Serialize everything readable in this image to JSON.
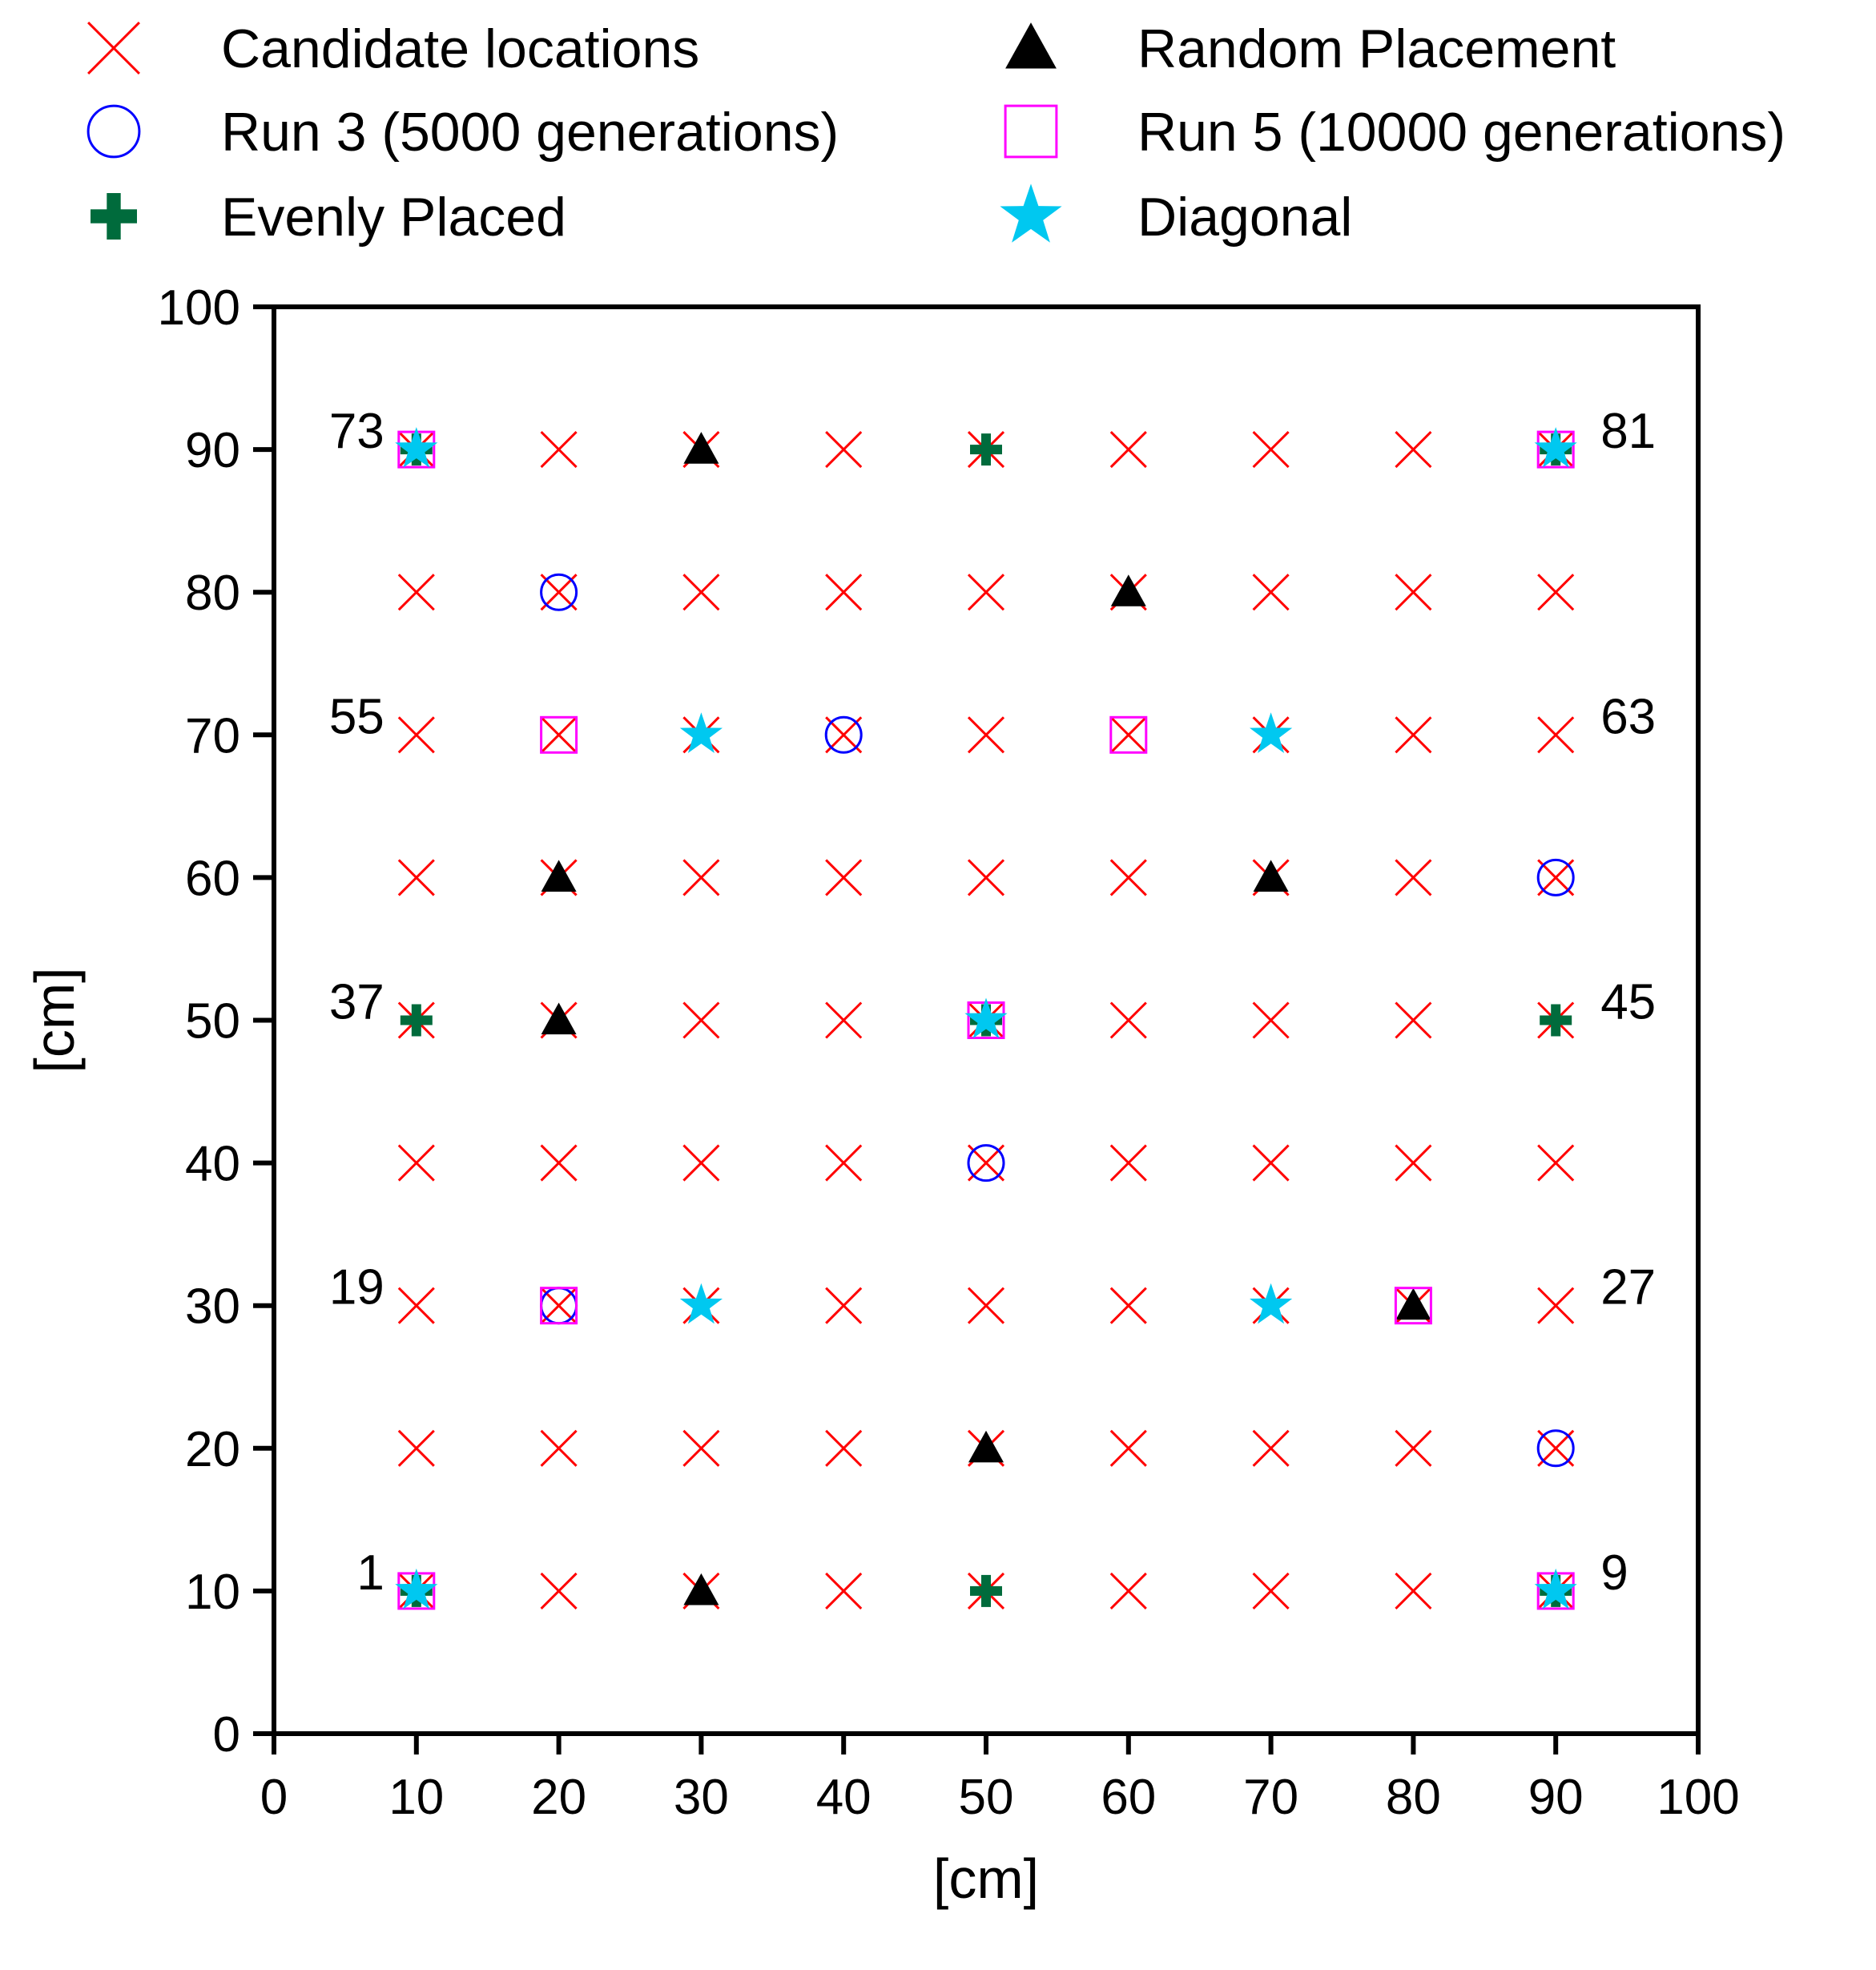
{
  "chart_data": {
    "type": "scatter",
    "title": "",
    "xlabel": "[cm]",
    "ylabel": "[cm]",
    "xlim": [
      0,
      100
    ],
    "ylim": [
      0,
      100
    ],
    "xticks": [
      0,
      10,
      20,
      30,
      40,
      50,
      60,
      70,
      80,
      90,
      100
    ],
    "yticks": [
      0,
      10,
      20,
      30,
      40,
      50,
      60,
      70,
      80,
      90,
      100
    ],
    "grid": false,
    "legend_position": "top",
    "colors": {
      "candidate": "#ff0000",
      "run3": "#0000ff",
      "evenly": "#006b3c",
      "random": "#000000",
      "run5": "#ff00ff",
      "diagonal": "#00c8f0"
    },
    "series": [
      {
        "key": "candidate",
        "name": "Candidate locations",
        "marker": "x",
        "points": [
          [
            10,
            10
          ],
          [
            20,
            10
          ],
          [
            30,
            10
          ],
          [
            40,
            10
          ],
          [
            50,
            10
          ],
          [
            60,
            10
          ],
          [
            70,
            10
          ],
          [
            80,
            10
          ],
          [
            90,
            10
          ],
          [
            10,
            20
          ],
          [
            20,
            20
          ],
          [
            30,
            20
          ],
          [
            40,
            20
          ],
          [
            50,
            20
          ],
          [
            60,
            20
          ],
          [
            70,
            20
          ],
          [
            80,
            20
          ],
          [
            90,
            20
          ],
          [
            10,
            30
          ],
          [
            20,
            30
          ],
          [
            30,
            30
          ],
          [
            40,
            30
          ],
          [
            50,
            30
          ],
          [
            60,
            30
          ],
          [
            70,
            30
          ],
          [
            80,
            30
          ],
          [
            90,
            30
          ],
          [
            10,
            40
          ],
          [
            20,
            40
          ],
          [
            30,
            40
          ],
          [
            40,
            40
          ],
          [
            50,
            40
          ],
          [
            60,
            40
          ],
          [
            70,
            40
          ],
          [
            80,
            40
          ],
          [
            90,
            40
          ],
          [
            10,
            50
          ],
          [
            20,
            50
          ],
          [
            30,
            50
          ],
          [
            40,
            50
          ],
          [
            50,
            50
          ],
          [
            60,
            50
          ],
          [
            70,
            50
          ],
          [
            80,
            50
          ],
          [
            90,
            50
          ],
          [
            10,
            60
          ],
          [
            20,
            60
          ],
          [
            30,
            60
          ],
          [
            40,
            60
          ],
          [
            50,
            60
          ],
          [
            60,
            60
          ],
          [
            70,
            60
          ],
          [
            80,
            60
          ],
          [
            90,
            60
          ],
          [
            10,
            70
          ],
          [
            20,
            70
          ],
          [
            30,
            70
          ],
          [
            40,
            70
          ],
          [
            50,
            70
          ],
          [
            60,
            70
          ],
          [
            70,
            70
          ],
          [
            80,
            70
          ],
          [
            90,
            70
          ],
          [
            10,
            80
          ],
          [
            20,
            80
          ],
          [
            30,
            80
          ],
          [
            40,
            80
          ],
          [
            50,
            80
          ],
          [
            60,
            80
          ],
          [
            70,
            80
          ],
          [
            80,
            80
          ],
          [
            90,
            80
          ],
          [
            10,
            90
          ],
          [
            20,
            90
          ],
          [
            30,
            90
          ],
          [
            40,
            90
          ],
          [
            50,
            90
          ],
          [
            60,
            90
          ],
          [
            70,
            90
          ],
          [
            80,
            90
          ],
          [
            90,
            90
          ]
        ]
      },
      {
        "key": "run3",
        "name": "Run 3 (5000 generations)",
        "marker": "circle",
        "points": [
          [
            20,
            80
          ],
          [
            40,
            70
          ],
          [
            90,
            60
          ],
          [
            50,
            40
          ],
          [
            20,
            30
          ],
          [
            90,
            20
          ]
        ]
      },
      {
        "key": "evenly",
        "name": "Evenly Placed",
        "marker": "plus",
        "points": [
          [
            10,
            10
          ],
          [
            50,
            10
          ],
          [
            90,
            10
          ],
          [
            10,
            50
          ],
          [
            50,
            50
          ],
          [
            90,
            50
          ],
          [
            10,
            90
          ],
          [
            50,
            90
          ],
          [
            90,
            90
          ]
        ]
      },
      {
        "key": "random",
        "name": "Random Placement",
        "marker": "triangle",
        "points": [
          [
            30,
            90
          ],
          [
            60,
            80
          ],
          [
            20,
            60
          ],
          [
            70,
            60
          ],
          [
            20,
            50
          ],
          [
            80,
            30
          ],
          [
            50,
            20
          ],
          [
            30,
            10
          ]
        ]
      },
      {
        "key": "run5",
        "name": "Run 5 (10000 generations)",
        "marker": "square",
        "points": [
          [
            10,
            90
          ],
          [
            90,
            90
          ],
          [
            20,
            70
          ],
          [
            60,
            70
          ],
          [
            50,
            50
          ],
          [
            20,
            30
          ],
          [
            80,
            30
          ],
          [
            10,
            10
          ],
          [
            90,
            10
          ]
        ]
      },
      {
        "key": "diagonal",
        "name": "Diagonal",
        "marker": "star",
        "points": [
          [
            10,
            90
          ],
          [
            90,
            90
          ],
          [
            30,
            70
          ],
          [
            70,
            70
          ],
          [
            50,
            50
          ],
          [
            30,
            30
          ],
          [
            70,
            30
          ],
          [
            10,
            10
          ],
          [
            90,
            10
          ]
        ]
      }
    ],
    "legend_order": [
      [
        "candidate",
        "random"
      ],
      [
        "run3",
        "run5"
      ],
      [
        "evenly",
        "diagonal"
      ]
    ],
    "annotations": [
      {
        "text": "73",
        "x": 10,
        "y": 90,
        "side": "left"
      },
      {
        "text": "81",
        "x": 90,
        "y": 90,
        "side": "right"
      },
      {
        "text": "55",
        "x": 10,
        "y": 70,
        "side": "left"
      },
      {
        "text": "63",
        "x": 90,
        "y": 70,
        "side": "right"
      },
      {
        "text": "37",
        "x": 10,
        "y": 50,
        "side": "left"
      },
      {
        "text": "45",
        "x": 90,
        "y": 50,
        "side": "right"
      },
      {
        "text": "19",
        "x": 10,
        "y": 30,
        "side": "left"
      },
      {
        "text": "27",
        "x": 90,
        "y": 30,
        "side": "right"
      },
      {
        "text": "1",
        "x": 10,
        "y": 10,
        "side": "left"
      },
      {
        "text": "9",
        "x": 90,
        "y": 10,
        "side": "right"
      }
    ]
  }
}
